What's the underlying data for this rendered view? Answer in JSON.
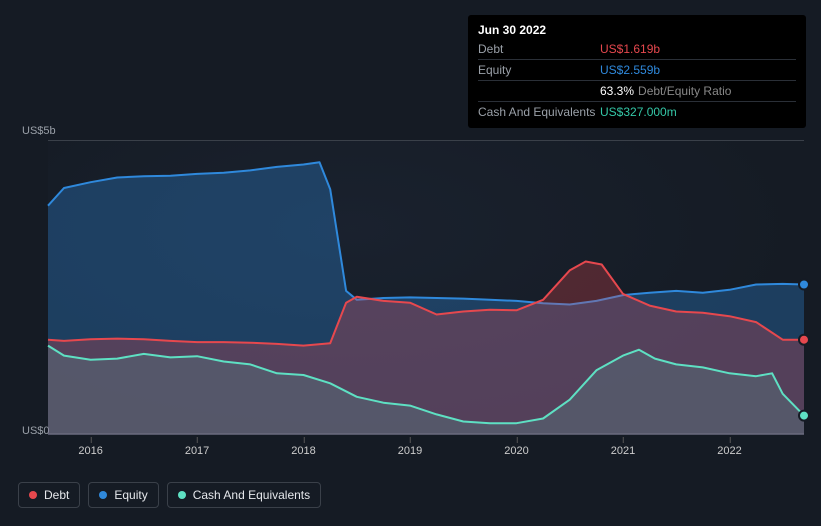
{
  "tooltip": {
    "date": "Jun 30 2022",
    "rows": [
      {
        "label": "Debt",
        "value": "US$1.619b",
        "color": "#e6484e"
      },
      {
        "label": "Equity",
        "value": "US$2.559b",
        "color": "#2f89dc"
      },
      {
        "label": "",
        "value": "63.3%",
        "extra": "Debt/Equity Ratio",
        "color": "#ffffff"
      },
      {
        "label": "Cash And Equivalents",
        "value": "US$327.000m",
        "color": "#34c7a7"
      }
    ]
  },
  "chart": {
    "type": "area",
    "background_color": "#151b24",
    "grid_color": "#3a4049",
    "y_axis": {
      "top_label": "US$5b",
      "bottom_label": "US$0",
      "min": 0,
      "max": 5,
      "label_color": "#9aa0a8",
      "label_fontsize": 11
    },
    "x_axis": {
      "min": 2015.6,
      "max": 2022.7,
      "ticks": [
        {
          "year": 2016,
          "label": "2016"
        },
        {
          "year": 2017,
          "label": "2017"
        },
        {
          "year": 2018,
          "label": "2018"
        },
        {
          "year": 2019,
          "label": "2019"
        },
        {
          "year": 2020,
          "label": "2020"
        },
        {
          "year": 2021,
          "label": "2021"
        },
        {
          "year": 2022,
          "label": "2022"
        }
      ],
      "label_color": "#cccccc",
      "label_fontsize": 11
    },
    "series": [
      {
        "name": "Equity",
        "color": "#2f89dc",
        "fill_opacity": 0.32,
        "line_width": 2,
        "data": [
          [
            2015.6,
            3.9
          ],
          [
            2015.75,
            4.2
          ],
          [
            2016.0,
            4.3
          ],
          [
            2016.25,
            4.38
          ],
          [
            2016.5,
            4.4
          ],
          [
            2016.75,
            4.41
          ],
          [
            2017.0,
            4.44
          ],
          [
            2017.25,
            4.46
          ],
          [
            2017.5,
            4.5
          ],
          [
            2017.75,
            4.56
          ],
          [
            2018.0,
            4.6
          ],
          [
            2018.15,
            4.64
          ],
          [
            2018.25,
            4.18
          ],
          [
            2018.4,
            2.45
          ],
          [
            2018.5,
            2.3
          ],
          [
            2018.75,
            2.33
          ],
          [
            2019.0,
            2.34
          ],
          [
            2019.25,
            2.33
          ],
          [
            2019.5,
            2.32
          ],
          [
            2019.75,
            2.3
          ],
          [
            2020.0,
            2.28
          ],
          [
            2020.25,
            2.24
          ],
          [
            2020.5,
            2.22
          ],
          [
            2020.75,
            2.28
          ],
          [
            2021.0,
            2.38
          ],
          [
            2021.25,
            2.42
          ],
          [
            2021.5,
            2.45
          ],
          [
            2021.75,
            2.42
          ],
          [
            2022.0,
            2.47
          ],
          [
            2022.25,
            2.56
          ],
          [
            2022.5,
            2.57
          ],
          [
            2022.7,
            2.56
          ]
        ]
      },
      {
        "name": "Debt",
        "color": "#e6484e",
        "fill_opacity": 0.28,
        "line_width": 2,
        "data": [
          [
            2015.6,
            1.62
          ],
          [
            2015.75,
            1.6
          ],
          [
            2016.0,
            1.63
          ],
          [
            2016.25,
            1.64
          ],
          [
            2016.5,
            1.63
          ],
          [
            2016.75,
            1.6
          ],
          [
            2017.0,
            1.58
          ],
          [
            2017.25,
            1.58
          ],
          [
            2017.5,
            1.57
          ],
          [
            2017.75,
            1.55
          ],
          [
            2018.0,
            1.52
          ],
          [
            2018.25,
            1.56
          ],
          [
            2018.4,
            2.25
          ],
          [
            2018.5,
            2.35
          ],
          [
            2018.75,
            2.28
          ],
          [
            2019.0,
            2.25
          ],
          [
            2019.25,
            2.05
          ],
          [
            2019.5,
            2.1
          ],
          [
            2019.75,
            2.13
          ],
          [
            2020.0,
            2.12
          ],
          [
            2020.25,
            2.3
          ],
          [
            2020.5,
            2.8
          ],
          [
            2020.65,
            2.95
          ],
          [
            2020.8,
            2.9
          ],
          [
            2021.0,
            2.4
          ],
          [
            2021.25,
            2.2
          ],
          [
            2021.5,
            2.1
          ],
          [
            2021.75,
            2.08
          ],
          [
            2022.0,
            2.02
          ],
          [
            2022.25,
            1.92
          ],
          [
            2022.5,
            1.62
          ],
          [
            2022.7,
            1.62
          ]
        ]
      },
      {
        "name": "Cash And Equivalents",
        "color": "#5ee0c3",
        "fill_opacity": 0.14,
        "line_width": 2,
        "data": [
          [
            2015.6,
            1.52
          ],
          [
            2015.75,
            1.35
          ],
          [
            2016.0,
            1.28
          ],
          [
            2016.25,
            1.3
          ],
          [
            2016.5,
            1.38
          ],
          [
            2016.75,
            1.32
          ],
          [
            2017.0,
            1.34
          ],
          [
            2017.25,
            1.25
          ],
          [
            2017.5,
            1.2
          ],
          [
            2017.75,
            1.05
          ],
          [
            2018.0,
            1.02
          ],
          [
            2018.25,
            0.88
          ],
          [
            2018.5,
            0.65
          ],
          [
            2018.75,
            0.55
          ],
          [
            2019.0,
            0.5
          ],
          [
            2019.25,
            0.35
          ],
          [
            2019.5,
            0.23
          ],
          [
            2019.75,
            0.2
          ],
          [
            2020.0,
            0.2
          ],
          [
            2020.25,
            0.28
          ],
          [
            2020.5,
            0.6
          ],
          [
            2020.75,
            1.1
          ],
          [
            2021.0,
            1.35
          ],
          [
            2021.15,
            1.45
          ],
          [
            2021.3,
            1.3
          ],
          [
            2021.5,
            1.2
          ],
          [
            2021.75,
            1.15
          ],
          [
            2022.0,
            1.05
          ],
          [
            2022.25,
            1.0
          ],
          [
            2022.4,
            1.05
          ],
          [
            2022.5,
            0.7
          ],
          [
            2022.7,
            0.33
          ]
        ]
      }
    ],
    "end_markers": [
      {
        "series": "Equity",
        "x": 2022.7,
        "y": 2.56,
        "color": "#2f89dc"
      },
      {
        "series": "Debt",
        "x": 2022.7,
        "y": 1.62,
        "color": "#e6484e"
      },
      {
        "series": "Cash And Equivalents",
        "x": 2022.7,
        "y": 0.33,
        "color": "#5ee0c3"
      }
    ]
  },
  "legend": {
    "items": [
      {
        "label": "Debt",
        "color": "#e6484e"
      },
      {
        "label": "Equity",
        "color": "#2f89dc"
      },
      {
        "label": "Cash And Equivalents",
        "color": "#5ee0c3"
      }
    ],
    "border_color": "#3a4049",
    "fontsize": 12
  }
}
